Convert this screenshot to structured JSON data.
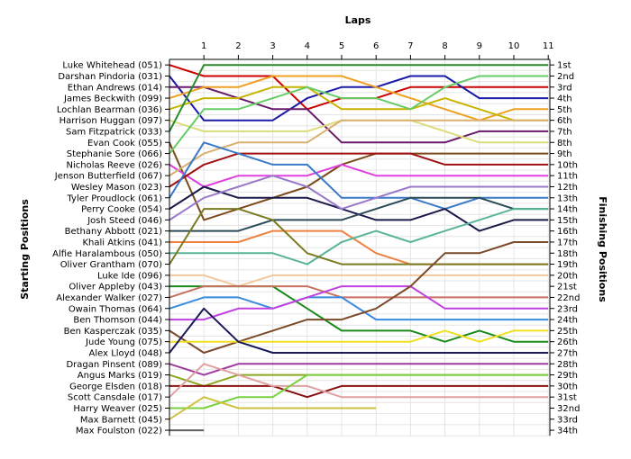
{
  "chart_data": {
    "type": "line",
    "title": "Laps",
    "ylabel_left": "Starting Positions",
    "ylabel_right": "Finishing Positions",
    "laps": [
      "1",
      "2",
      "3",
      "4",
      "5",
      "6",
      "7",
      "8",
      "9",
      "10",
      "11"
    ],
    "positions": [
      "1st",
      "2nd",
      "3rd",
      "4th",
      "5th",
      "6th",
      "7th",
      "8th",
      "9th",
      "10th",
      "11th",
      "12th",
      "13th",
      "14th",
      "15th",
      "16th",
      "17th",
      "18th",
      "19th",
      "20th",
      "21st",
      "22nd",
      "23rd",
      "24th",
      "25th",
      "26th",
      "27th",
      "28th",
      "29th",
      "30th",
      "31st",
      "32nd",
      "33rd",
      "34th"
    ],
    "series": [
      {
        "name": "Luke Whitehead (051)",
        "color": "#cc0000",
        "values": [
          1,
          2,
          2,
          2,
          5,
          4,
          4,
          3,
          3,
          3,
          3
        ]
      },
      {
        "name": "Darshan Pindoria (031)",
        "color": "#1a1aa8",
        "values": [
          2,
          6,
          6,
          6,
          4,
          3,
          3,
          2,
          2,
          4,
          4
        ]
      },
      {
        "name": "Ethan Andrews (014)",
        "color": "#6a1a6a",
        "values": [
          3,
          3,
          4,
          5,
          5,
          8,
          8,
          8,
          8,
          7,
          7
        ]
      },
      {
        "name": "James Beckwith (099)",
        "color": "#f0a020",
        "values": [
          4,
          3,
          3,
          2,
          2,
          2,
          3,
          4,
          5,
          6,
          5
        ]
      },
      {
        "name": "Lochlan Bearman (036)",
        "color": "#c8b400",
        "values": [
          5,
          4,
          4,
          3,
          3,
          5,
          5,
          5,
          4,
          5,
          6
        ]
      },
      {
        "name": "Harrison Huggan (097)",
        "color": "#dcdc7a",
        "values": [
          6,
          7,
          7,
          7,
          7,
          6,
          6,
          6,
          7,
          8,
          8
        ]
      },
      {
        "name": "Sam Fitzpatrick (033)",
        "color": "#2a8a2a",
        "values": [
          7,
          1,
          1,
          1,
          1,
          1,
          1,
          1,
          1,
          1,
          1
        ]
      },
      {
        "name": "Evan Cook (055)",
        "color": "#7a4a1a",
        "values": [
          8,
          15,
          14,
          13,
          12,
          10,
          9,
          9,
          9,
          9,
          9
        ]
      },
      {
        "name": "Stephanie Sore (066)",
        "color": "#66cc66",
        "values": [
          9,
          5,
          5,
          4,
          3,
          4,
          4,
          5,
          3,
          2,
          2
        ]
      },
      {
        "name": "Nicholas Reeve (026)",
        "color": "#e040e0",
        "values": [
          10,
          12,
          11,
          11,
          11,
          10,
          11,
          11,
          11,
          11,
          11
        ]
      },
      {
        "name": "Jenson Butterfield (067)",
        "color": "#d8b070",
        "values": [
          11,
          9,
          8,
          8,
          8,
          6,
          6,
          6,
          6,
          6,
          6
        ]
      },
      {
        "name": "Wesley Mason (023)",
        "color": "#a01010",
        "values": [
          12,
          10,
          9,
          9,
          9,
          9,
          9,
          9,
          10,
          10,
          10
        ]
      },
      {
        "name": "Tyler Proudlock (061)",
        "color": "#3a7ac8",
        "values": [
          13,
          8,
          9,
          10,
          10,
          13,
          13,
          13,
          14,
          13,
          13
        ]
      },
      {
        "name": "Perry Cooke (054)",
        "color": "#1a1a4a",
        "values": [
          14,
          12,
          13,
          13,
          13,
          14,
          15,
          15,
          14,
          16,
          15
        ]
      },
      {
        "name": "Josh Steed (046)",
        "color": "#9a7ac8",
        "values": [
          15,
          13,
          12,
          11,
          12,
          14,
          13,
          12,
          12,
          12,
          12
        ]
      },
      {
        "name": "Bethany Abbott (021)",
        "color": "#2a4a5a",
        "values": [
          16,
          16,
          16,
          15,
          15,
          15,
          14,
          13,
          13,
          13,
          14
        ]
      },
      {
        "name": "Khali Atkins (041)",
        "color": "#f08040",
        "values": [
          17,
          17,
          17,
          16,
          16,
          16,
          18,
          19,
          19,
          19,
          19
        ]
      },
      {
        "name": "Alfie Haralambous (050)",
        "color": "#5ab49a",
        "values": [
          18,
          18,
          18,
          18,
          19,
          17,
          16,
          17,
          16,
          15,
          14
        ]
      },
      {
        "name": "Oliver Grantham (070)",
        "color": "#7a7a20",
        "values": [
          19,
          14,
          14,
          15,
          18,
          19,
          19,
          19,
          19,
          19,
          19
        ]
      },
      {
        "name": "Luke Ide (096)",
        "color": "#f0c8a0",
        "values": [
          20,
          20,
          21,
          20,
          20,
          20,
          20,
          20,
          20,
          20,
          20
        ]
      },
      {
        "name": "Oliver Appleby (043)",
        "color": "#1a8a1a",
        "values": [
          21,
          21,
          21,
          21,
          23,
          25,
          25,
          25,
          26,
          25,
          26
        ]
      },
      {
        "name": "Alexander Walker (027)",
        "color": "#c87060",
        "values": [
          22,
          21,
          21,
          21,
          21,
          22,
          22,
          22,
          22,
          22,
          22
        ]
      },
      {
        "name": "Owain Thomas (064)",
        "color": "#3a8ae0",
        "values": [
          23,
          22,
          22,
          23,
          22,
          22,
          24,
          24,
          24,
          24,
          24
        ]
      },
      {
        "name": "Ben Thomson (044)",
        "color": "#c040e0",
        "values": [
          24,
          24,
          23,
          23,
          22,
          21,
          21,
          21,
          23,
          23,
          23
        ]
      },
      {
        "name": "Ben Kasperczak (035)",
        "color": "#7a4a2a",
        "values": [
          25,
          27,
          26,
          25,
          24,
          24,
          23,
          21,
          18,
          18,
          17
        ]
      },
      {
        "name": "Jude Young (075)",
        "color": "#f0e020",
        "values": [
          26,
          26,
          26,
          26,
          26,
          26,
          26,
          26,
          25,
          26,
          25
        ]
      },
      {
        "name": "Alex Lloyd (048)",
        "color": "#1a1a5a",
        "values": [
          27,
          23,
          26,
          27,
          27,
          27,
          27,
          27,
          27,
          27,
          27
        ]
      },
      {
        "name": "Dragan Pinsent (089)",
        "color": "#a03aa0",
        "values": [
          28,
          29,
          28,
          28,
          28,
          28,
          28,
          28,
          28,
          28,
          28
        ]
      },
      {
        "name": "Angus Marks (019)",
        "color": "#8aa820",
        "values": [
          29,
          30,
          29,
          29,
          29,
          29,
          29,
          29,
          29,
          29,
          29
        ]
      },
      {
        "name": "George Elsden (018)",
        "color": "#8a1010",
        "values": [
          30,
          30,
          30,
          30,
          31,
          30,
          30,
          30,
          30,
          30,
          30
        ]
      },
      {
        "name": "Scott Cansdale (017)",
        "color": "#e0a0a0",
        "values": [
          31,
          28,
          29,
          30,
          30,
          31,
          31,
          31,
          31,
          31,
          31
        ]
      },
      {
        "name": "Harry Weaver (025)",
        "color": "#7ad040",
        "values": [
          32,
          32,
          31,
          31,
          29,
          29,
          29,
          29,
          29,
          29,
          29
        ]
      },
      {
        "name": "Max Barnett (045)",
        "color": "#d0c040",
        "values": [
          33,
          31,
          32,
          32,
          32,
          32,
          null,
          null,
          null,
          null,
          null
        ]
      },
      {
        "name": "Max Foulston (022)",
        "color": "#606060",
        "values": [
          34,
          null,
          null,
          null,
          null,
          null,
          null,
          null,
          null,
          null,
          null
        ]
      }
    ]
  }
}
